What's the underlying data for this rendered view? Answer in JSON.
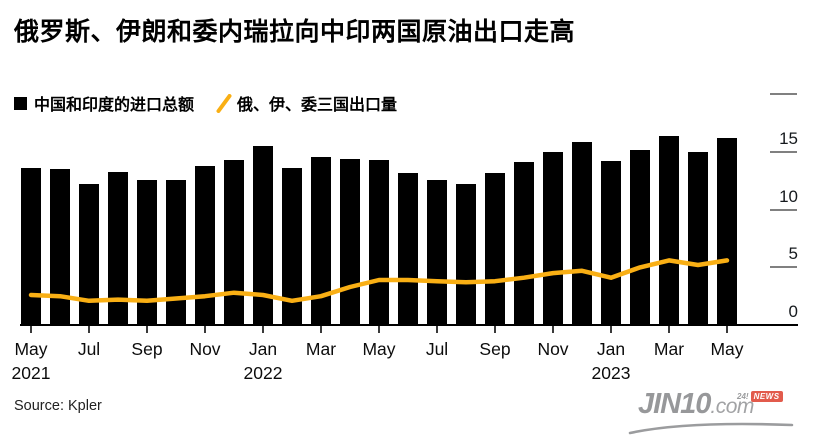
{
  "title": "俄罗斯、伊朗和委内瑞拉向中印两国原油出口走高",
  "legend": {
    "bars_label": "中国和印度的进口总额",
    "line_label": "俄、伊、委三国出口量"
  },
  "source": "Source: Kpler",
  "logo": {
    "main": "JIN10",
    "suffix": ".com",
    "small": "24!",
    "badge": "NEWS"
  },
  "colors": {
    "bar": "#000000",
    "line": "#F9AF14",
    "axis_dash": "#808080",
    "badge_red": "#E25B4C",
    "logo_gray": "#97989A"
  },
  "chart_data": {
    "type": "bar",
    "title": "俄罗斯、伊朗和委内瑞拉向中印两国原油出口走高",
    "xlabel": "",
    "ylabel": "",
    "ylim": [
      0,
      20
    ],
    "ytick_labels": [
      0,
      5,
      10,
      15
    ],
    "ytick_dashes": [
      5,
      10,
      15,
      20
    ],
    "legend_position": "top-left",
    "grid": false,
    "categories": [
      "May 2021",
      "Jun 2021",
      "Jul 2021",
      "Aug 2021",
      "Sep 2021",
      "Oct 2021",
      "Nov 2021",
      "Dec 2021",
      "Jan 2022",
      "Feb 2022",
      "Mar 2022",
      "Apr 2022",
      "May 2022",
      "Jun 2022",
      "Jul 2022",
      "Aug 2022",
      "Sep 2022",
      "Oct 2022",
      "Nov 2022",
      "Dec 2022",
      "Jan 2023",
      "Feb 2023",
      "Mar 2023",
      "Apr 2023",
      "May 2023"
    ],
    "series": [
      {
        "name": "中国和印度的进口总额",
        "type": "bar",
        "values": [
          13.6,
          13.5,
          12.2,
          13.3,
          12.6,
          12.6,
          13.8,
          14.3,
          15.5,
          13.6,
          14.6,
          14.4,
          14.3,
          13.2,
          12.6,
          12.2,
          13.2,
          14.1,
          15.0,
          15.9,
          14.2,
          15.2,
          16.4,
          15.0,
          16.2
        ]
      },
      {
        "name": "俄、伊、委三国出口量",
        "type": "line",
        "values": [
          2.6,
          2.5,
          2.1,
          2.2,
          2.1,
          2.3,
          2.5,
          2.8,
          2.6,
          2.1,
          2.5,
          3.3,
          3.9,
          3.9,
          3.8,
          3.7,
          3.8,
          4.1,
          4.5,
          4.7,
          4.1,
          5.0,
          5.6,
          5.2,
          5.6
        ]
      }
    ],
    "xticks": [
      {
        "month": "May",
        "year": "2021"
      },
      {
        "month": "Jul"
      },
      {
        "month": "Sep"
      },
      {
        "month": "Nov"
      },
      {
        "month": "Jan",
        "year": "2022"
      },
      {
        "month": "Mar"
      },
      {
        "month": "May"
      },
      {
        "month": "Jul"
      },
      {
        "month": "Sep"
      },
      {
        "month": "Nov"
      },
      {
        "month": "Jan",
        "year": "2023"
      },
      {
        "month": "Mar"
      },
      {
        "month": "May"
      }
    ]
  }
}
